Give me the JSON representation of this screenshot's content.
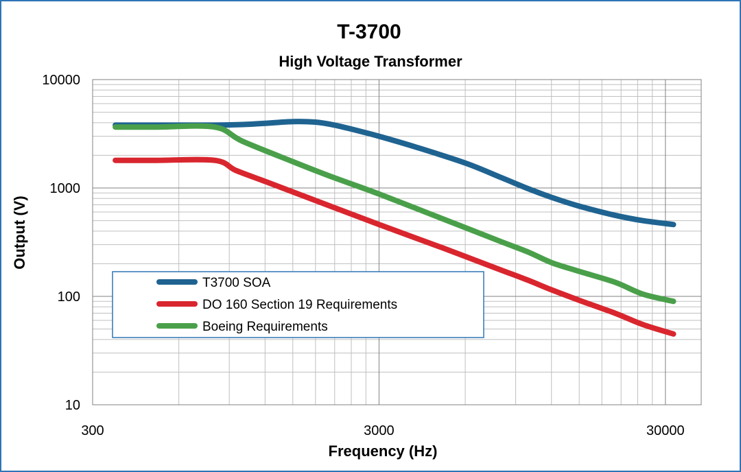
{
  "colors": {
    "frame_border": "#2e75b6",
    "grid": "#bfbfbf",
    "grid_major": "#808080",
    "legend_border": "#2e75b6"
  },
  "chart_data": {
    "type": "line",
    "title": "T-3700",
    "subtitle": "High Voltage Transformer",
    "xlabel": "Frequency (Hz)",
    "ylabel": "Output (V)",
    "x_scale": "log",
    "y_scale": "log",
    "xlim": [
      300,
      40000
    ],
    "ylim": [
      10,
      10000
    ],
    "x_ticks": [
      300,
      3000,
      30000
    ],
    "x_tick_labels": [
      "300",
      "3000",
      "30000"
    ],
    "y_ticks": [
      10,
      100,
      1000,
      10000
    ],
    "y_tick_labels": [
      "10",
      "100",
      "1000",
      "10000"
    ],
    "grid": true,
    "legend_position": "lower-left",
    "series": [
      {
        "name": "T3700 SOA",
        "color": "#1f6391",
        "x": [
          360,
          500,
          800,
          1000,
          1200,
          1500,
          1800,
          2100,
          2500,
          3000,
          4000,
          6000,
          8000,
          10000,
          12000,
          15000,
          20000,
          25000,
          32000
        ],
        "y": [
          3800,
          3800,
          3800,
          3850,
          3950,
          4100,
          4050,
          3800,
          3400,
          3000,
          2400,
          1700,
          1250,
          980,
          820,
          680,
          560,
          500,
          460
        ]
      },
      {
        "name": "DO 160 Section 19 Requirements",
        "color": "#d9262e",
        "x": [
          360,
          500,
          800,
          950,
          1200,
          1500,
          2000,
          3000,
          5000,
          8000,
          10000,
          12000,
          15000,
          20000,
          25000,
          32000
        ],
        "y": [
          1800,
          1800,
          1800,
          1450,
          1150,
          920,
          690,
          460,
          280,
          175,
          140,
          115,
          92,
          70,
          55,
          45
        ]
      },
      {
        "name": "Boeing Requirements",
        "color": "#4aa04a",
        "x": [
          360,
          500,
          800,
          1000,
          1500,
          2000,
          3000,
          5000,
          8000,
          10000,
          12000,
          15000,
          20000,
          25000,
          32000
        ],
        "y": [
          3650,
          3650,
          3650,
          2700,
          1750,
          1300,
          880,
          520,
          320,
          255,
          205,
          170,
          135,
          105,
          90
        ]
      }
    ]
  }
}
